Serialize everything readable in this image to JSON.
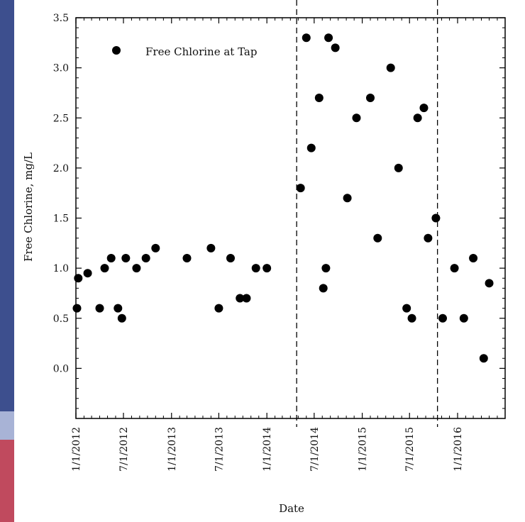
{
  "chart_data": {
    "type": "scatter",
    "ylabel": "Free Chlorine, mg/L",
    "xlabel": "Date",
    "ylim": [
      -0.5,
      3.5
    ],
    "y_ticks": [
      "0.0",
      "0.5",
      "1.0",
      "1.5",
      "2.0",
      "2.5",
      "3.0",
      "3.5"
    ],
    "x_ticks": [
      "1/1/2012",
      "7/1/2012",
      "1/1/2013",
      "7/1/2013",
      "1/1/2014",
      "7/1/2014",
      "1/1/2015",
      "7/1/2015",
      "1/1/2016"
    ],
    "x_range": [
      "2012-01-01",
      "2016-07-01"
    ],
    "reference_lines": [
      "2014-04-25",
      "2015-10-16"
    ],
    "grid": false,
    "legend_position": "top-left",
    "series": [
      {
        "name": "Free Chlorine at Tap",
        "marker": "filled-circle",
        "color": "#000000",
        "points": [
          [
            "2012-01-05",
            0.6
          ],
          [
            "2012-01-10",
            0.9
          ],
          [
            "2012-02-15",
            0.95
          ],
          [
            "2012-04-01",
            0.6
          ],
          [
            "2012-04-20",
            1.0
          ],
          [
            "2012-05-15",
            1.1
          ],
          [
            "2012-06-10",
            0.6
          ],
          [
            "2012-06-25",
            0.5
          ],
          [
            "2012-07-10",
            1.1
          ],
          [
            "2012-08-20",
            1.0
          ],
          [
            "2012-09-25",
            1.1
          ],
          [
            "2012-11-01",
            1.2
          ],
          [
            "2013-03-01",
            1.1
          ],
          [
            "2013-06-01",
            1.2
          ],
          [
            "2013-07-01",
            0.6
          ],
          [
            "2013-08-15",
            1.1
          ],
          [
            "2013-09-20",
            0.7
          ],
          [
            "2013-10-15",
            0.7
          ],
          [
            "2013-11-20",
            1.0
          ],
          [
            "2014-01-01",
            1.0
          ],
          [
            "2014-05-10",
            1.8
          ],
          [
            "2014-06-20",
            2.2
          ],
          [
            "2014-07-20",
            2.7
          ],
          [
            "2014-08-05",
            0.8
          ],
          [
            "2014-08-15",
            1.0
          ],
          [
            "2014-06-01",
            3.3
          ],
          [
            "2014-08-25",
            3.3
          ],
          [
            "2014-09-20",
            3.2
          ],
          [
            "2014-11-05",
            1.7
          ],
          [
            "2014-12-10",
            2.5
          ],
          [
            "2015-02-01",
            2.7
          ],
          [
            "2015-03-01",
            1.3
          ],
          [
            "2015-04-20",
            3.0
          ],
          [
            "2015-05-20",
            2.0
          ],
          [
            "2015-06-20",
            0.6
          ],
          [
            "2015-07-10",
            0.5
          ],
          [
            "2015-08-01",
            2.5
          ],
          [
            "2015-08-25",
            2.6
          ],
          [
            "2015-09-10",
            1.3
          ],
          [
            "2015-10-10",
            1.5
          ],
          [
            "2015-11-05",
            0.5
          ],
          [
            "2015-12-20",
            1.0
          ],
          [
            "2016-01-25",
            0.5
          ],
          [
            "2016-03-01",
            1.1
          ],
          [
            "2016-04-10",
            0.1
          ],
          [
            "2016-05-01",
            0.85
          ]
        ]
      }
    ]
  }
}
